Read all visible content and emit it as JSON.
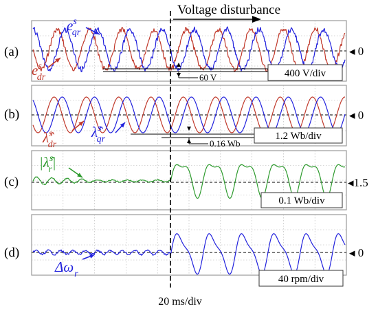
{
  "chart_data": {
    "type": "line",
    "x_scale_label": "20 ms/div",
    "event_label": "Voltage disturbance",
    "colors": {
      "red": "#c0392b",
      "blue": "#2222dd",
      "green": "#2e9b2e"
    },
    "panels": [
      {
        "id": "a",
        "letter": "(a)",
        "ref": "◂ 0",
        "scale_label": "400 V/div",
        "measurement": "60 V",
        "series": [
          {
            "name": "e_dr^s",
            "color": "red",
            "label": {
              "base": "e",
              "sup": "s",
              "sub": "dr"
            }
          },
          {
            "name": "e_qr^s",
            "color": "blue",
            "label": {
              "base": "e",
              "sup": "s",
              "sub": "qr"
            }
          }
        ]
      },
      {
        "id": "b",
        "letter": "(b)",
        "ref": "◂ 0",
        "scale_label": "1.2 Wb/div",
        "measurement": "0.16 Wb",
        "series": [
          {
            "name": "λ̂_dr^s",
            "color": "red",
            "label": {
              "base": "λ̂",
              "sup": "s",
              "sub": "dr"
            }
          },
          {
            "name": "λ̂_qr^s",
            "color": "blue",
            "label": {
              "base": "λ̂",
              "sup": "s",
              "sub": "qr"
            }
          }
        ]
      },
      {
        "id": "c",
        "letter": "(c)",
        "ref": "◂1.5",
        "scale_label": "0.1 Wb/div",
        "series": [
          {
            "name": "|λ̂_r^s|",
            "color": "green",
            "label": {
              "base": "|λ̂",
              "sup": "s",
              "sub": "r",
              "tail": "|"
            }
          }
        ]
      },
      {
        "id": "d",
        "letter": "(d)",
        "ref": "◂ 0",
        "scale_label": "40 rpm/div",
        "series": [
          {
            "name": "Δω_r",
            "color": "blue",
            "label": {
              "base": "Δω",
              "sub": "r"
            }
          }
        ]
      }
    ]
  }
}
